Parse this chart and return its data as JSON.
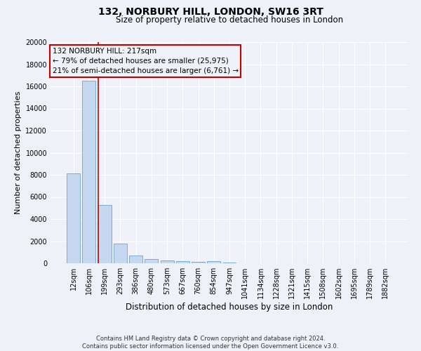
{
  "title": "132, NORBURY HILL, LONDON, SW16 3RT",
  "subtitle": "Size of property relative to detached houses in London",
  "xlabel": "Distribution of detached houses by size in London",
  "ylabel": "Number of detached properties",
  "bar_color": "#c5d8ef",
  "bar_edge_color": "#7aadd4",
  "categories": [
    "12sqm",
    "106sqm",
    "199sqm",
    "293sqm",
    "386sqm",
    "480sqm",
    "573sqm",
    "667sqm",
    "760sqm",
    "854sqm",
    "947sqm",
    "1041sqm",
    "1134sqm",
    "1228sqm",
    "1321sqm",
    "1415sqm",
    "1508sqm",
    "1602sqm",
    "1695sqm",
    "1789sqm",
    "1882sqm"
  ],
  "values": [
    8100,
    16500,
    5300,
    1750,
    700,
    350,
    255,
    195,
    150,
    165,
    60,
    0,
    0,
    0,
    0,
    0,
    0,
    0,
    0,
    0,
    0
  ],
  "ylim": [
    0,
    20000
  ],
  "yticks": [
    0,
    2000,
    4000,
    6000,
    8000,
    10000,
    12000,
    14000,
    16000,
    18000,
    20000
  ],
  "vline_color": "#c00000",
  "vline_pos": 1.57,
  "annotation_text_line1": "132 NORBURY HILL: 217sqm",
  "annotation_text_line2": "← 79% of detached houses are smaller (25,975)",
  "annotation_text_line3": "21% of semi-detached houses are larger (6,761) →",
  "box_color": "#c00000",
  "footer_line1": "Contains HM Land Registry data © Crown copyright and database right 2024.",
  "footer_line2": "Contains public sector information licensed under the Open Government Licence v3.0.",
  "background_color": "#eef2f8",
  "grid_color": "#ffffff",
  "title_fontsize": 10,
  "subtitle_fontsize": 8.5,
  "ylabel_fontsize": 8,
  "xlabel_fontsize": 8.5,
  "tick_fontsize": 7,
  "footer_fontsize": 6,
  "annot_fontsize": 7.5
}
